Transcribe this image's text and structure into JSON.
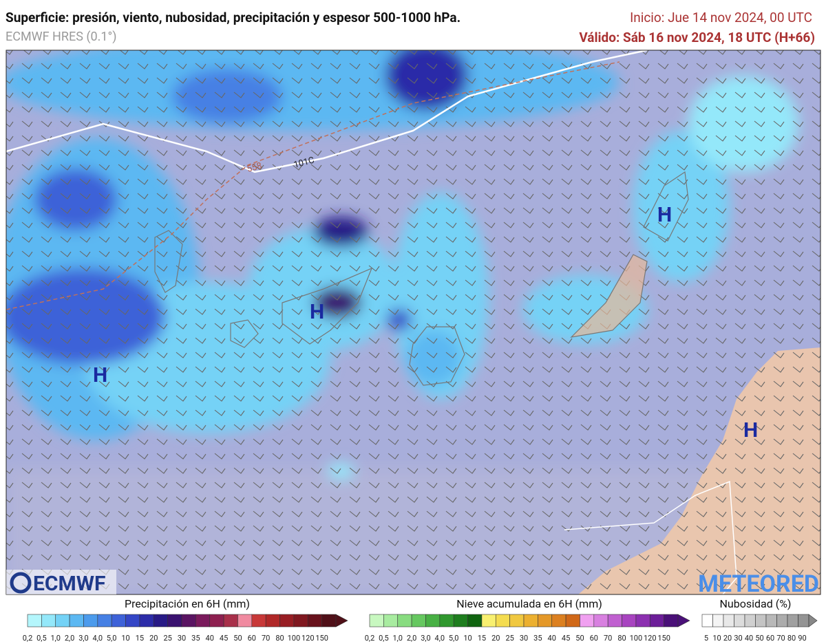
{
  "header": {
    "title": "Superficie: presión, viento, nubosidad, precipitación y espesor 500-1000 hPa.",
    "model": "ECMWF HRES (0.1°)",
    "init": "Inicio: Jue 14 nov 2024, 00 UTC",
    "valid": "Válido: Sáb 16 nov 2024, 18 UTC (H+66)"
  },
  "map": {
    "pressure_labels": [
      "H",
      "H",
      "H",
      "H"
    ],
    "contour_labels": [
      "558",
      "101C"
    ],
    "logos": [
      "ECMWF",
      "METEORED"
    ]
  },
  "legends": [
    {
      "title": "Precipitación en 6H (mm)",
      "labels": [
        "0,2",
        "0,5",
        "1,0",
        "2,0",
        "3,0",
        "4,0",
        "5,0",
        "10",
        "15",
        "20",
        "25",
        "30",
        "35",
        "40",
        "45",
        "50",
        "60",
        "70",
        "80",
        "100",
        "120",
        "150"
      ],
      "colors": [
        "#b4f6fc",
        "#94e8fa",
        "#74d2f6",
        "#5cb8f2",
        "#4c9bec",
        "#4680e4",
        "#3e62d8",
        "#3446c6",
        "#2c2ca8",
        "#281a86",
        "#3a1270",
        "#5a1462",
        "#7a1a5c",
        "#8e2050",
        "#a8304a",
        "#f08aa0",
        "#c83838",
        "#b02828",
        "#981e24",
        "#801820",
        "#68121c",
        "#501018"
      ]
    },
    {
      "title": "Nieve acumulada en 6H (mm)",
      "labels": [
        "0,2",
        "0,5",
        "1,0",
        "2,0",
        "3,0",
        "4,0",
        "5,0",
        "10",
        "15",
        "20",
        "25",
        "30",
        "35",
        "40",
        "45",
        "50",
        "60",
        "70",
        "80",
        "100",
        "120",
        "150"
      ],
      "colors": [
        "#c8f8c0",
        "#a8eca0",
        "#88dc80",
        "#66c860",
        "#48b044",
        "#30982e",
        "#1e7e1e",
        "#106410",
        "#f8f070",
        "#f4dc50",
        "#f0c840",
        "#ecb030",
        "#e49828",
        "#dc8020",
        "#d06818",
        "#f0a0f0",
        "#d880e0",
        "#c060d0",
        "#a844c0",
        "#8c30b0",
        "#6c1e98",
        "#4a1078"
      ]
    },
    {
      "title": "Nubosidad (%)",
      "labels": [
        "5",
        "10",
        "20",
        "30",
        "40",
        "50",
        "60",
        "70",
        "80",
        "90"
      ],
      "colors": [
        "#ffffff",
        "#f4f4f4",
        "#e8e8e8",
        "#dcdcdc",
        "#d0d0d0",
        "#c4c4c4",
        "#b8b8b8",
        "#acacac",
        "#a0a0a0",
        "#949494"
      ]
    }
  ]
}
